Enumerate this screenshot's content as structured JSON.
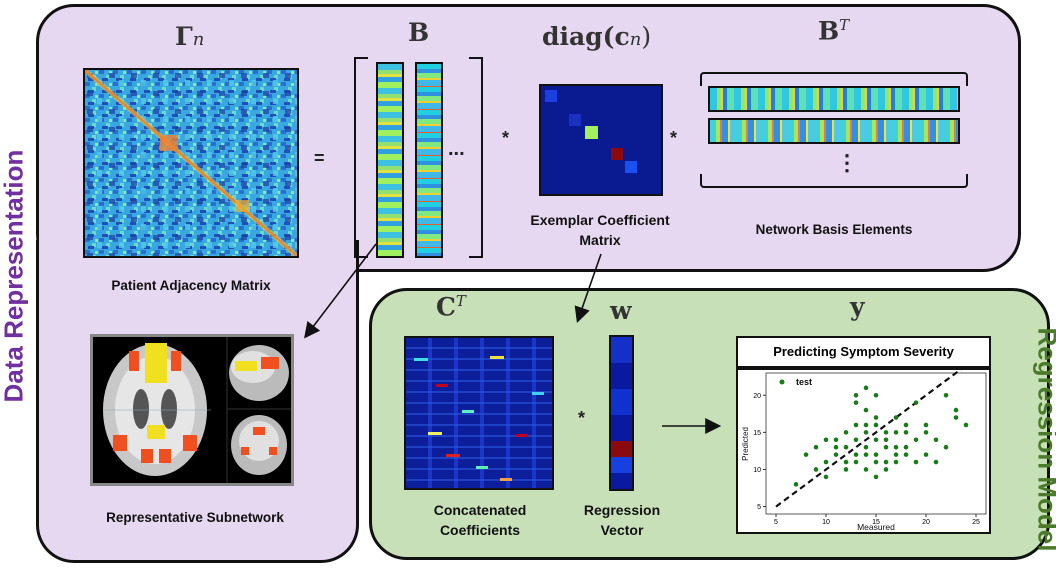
{
  "labels": {
    "data_representation": "Data Representation",
    "regression_model": "Regression Model"
  },
  "math": {
    "gamma": "Γ",
    "gamma_sub": "n",
    "B": "B",
    "diag": "diag(c",
    "diag_sub": "n",
    "diag_close": ")",
    "BT": "B",
    "BT_sup": "T",
    "CT": "C",
    "CT_sup": "T",
    "w": "w",
    "y": "y"
  },
  "operators": {
    "equals": "=",
    "times1": "*",
    "times2": "*",
    "times3": "*",
    "ellipsis_h": "...",
    "ellipsis_v": "⋮"
  },
  "captions": {
    "adjacency": "Patient Adjacency Matrix",
    "coef_matrix_l1": "Exemplar Coefficient",
    "coef_matrix_l2": "Matrix",
    "basis": "Network Basis Elements",
    "subnetwork": "Representative Subnetwork",
    "concat_l1": "Concatenated",
    "concat_l2": "Coefficients",
    "regvec_l1": "Regression",
    "regvec_l2": "Vector"
  },
  "colors": {
    "purple_panel": "#e6d8f0",
    "green_panel": "#c8e0b8",
    "purple_text": "#7030a0",
    "green_text": "#4a7a2a",
    "scatter": "#1a7a1a"
  },
  "chart_data": {
    "type": "scatter",
    "title": "Predicting Symptom Severity",
    "xlabel": "Measured",
    "ylabel": "Predicted",
    "xlim": [
      4,
      26
    ],
    "ylim": [
      4,
      23
    ],
    "xticks": [
      5,
      10,
      15,
      20,
      25
    ],
    "yticks": [
      5,
      10,
      15,
      20
    ],
    "legend": "test",
    "legend_position": "top-left",
    "series": [
      {
        "name": "test",
        "points": [
          [
            7,
            8
          ],
          [
            8,
            12
          ],
          [
            9,
            10
          ],
          [
            9,
            13
          ],
          [
            10,
            11
          ],
          [
            10,
            9
          ],
          [
            10,
            14
          ],
          [
            11,
            12
          ],
          [
            11,
            13
          ],
          [
            12,
            15
          ],
          [
            12,
            11
          ],
          [
            12,
            13
          ],
          [
            13,
            12
          ],
          [
            13,
            14
          ],
          [
            13,
            16
          ],
          [
            13,
            19
          ],
          [
            13,
            20
          ],
          [
            14,
            21
          ],
          [
            14,
            18
          ],
          [
            14,
            15
          ],
          [
            14,
            13
          ],
          [
            14,
            12
          ],
          [
            14,
            10
          ],
          [
            15,
            14
          ],
          [
            15,
            16
          ],
          [
            15,
            12
          ],
          [
            15,
            11
          ],
          [
            15,
            9
          ],
          [
            15,
            17
          ],
          [
            15,
            20
          ],
          [
            16,
            13
          ],
          [
            16,
            15
          ],
          [
            16,
            11
          ],
          [
            16,
            14
          ],
          [
            16,
            10
          ],
          [
            17,
            12
          ],
          [
            17,
            15
          ],
          [
            17,
            13
          ],
          [
            17,
            11
          ],
          [
            18,
            16
          ],
          [
            18,
            13
          ],
          [
            18,
            12
          ],
          [
            18,
            15
          ],
          [
            19,
            14
          ],
          [
            19,
            11
          ],
          [
            19,
            19
          ],
          [
            20,
            15
          ],
          [
            20,
            12
          ],
          [
            20,
            16
          ],
          [
            21,
            14
          ],
          [
            21,
            11
          ],
          [
            22,
            20
          ],
          [
            22,
            13
          ],
          [
            23,
            18
          ],
          [
            23,
            17
          ],
          [
            24,
            16
          ],
          [
            14,
            16
          ],
          [
            12,
            10
          ],
          [
            11,
            14
          ],
          [
            17,
            17
          ],
          [
            13,
            11
          ]
        ]
      }
    ],
    "trendline": {
      "from": [
        5,
        5
      ],
      "to": [
        25,
        25
      ],
      "style": "dashed"
    }
  }
}
